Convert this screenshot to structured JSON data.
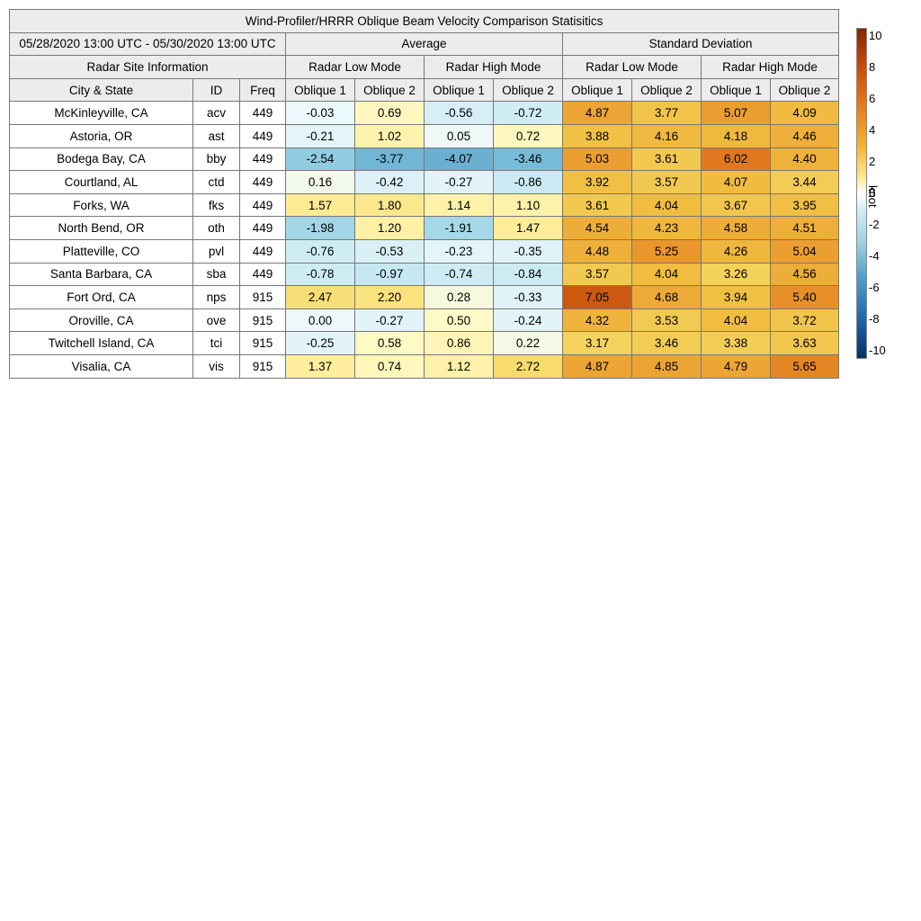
{
  "chart_data": {
    "type": "table",
    "title": "Wind-Profiler/HRRR Oblique Beam Velocity Comparison Statisitics",
    "period": "05/28/2020 13:00 UTC - 05/30/2020 13:00 UTC",
    "group_headers": [
      "Average",
      "Standard Deviation"
    ],
    "site_info_header": "Radar Site Information",
    "mode_headers": [
      "Radar Low Mode",
      "Radar High Mode",
      "Radar Low Mode",
      "Radar High Mode"
    ],
    "column_headers": [
      "City & State",
      "ID",
      "Freq",
      "Oblique 1",
      "Oblique 2",
      "Oblique 1",
      "Oblique 2",
      "Oblique 1",
      "Oblique 2",
      "Oblique 1",
      "Oblique 2"
    ],
    "rows": [
      {
        "city": "McKinleyville, CA",
        "id": "acv",
        "freq": "449",
        "avg": [
          "-0.03",
          "0.69",
          "-0.56",
          "-0.72"
        ],
        "std": [
          "4.87",
          "3.77",
          "5.07",
          "4.09"
        ]
      },
      {
        "city": "Astoria, OR",
        "id": "ast",
        "freq": "449",
        "avg": [
          "-0.21",
          "1.02",
          "0.05",
          "0.72"
        ],
        "std": [
          "3.88",
          "4.16",
          "4.18",
          "4.46"
        ]
      },
      {
        "city": "Bodega Bay, CA",
        "id": "bby",
        "freq": "449",
        "avg": [
          "-2.54",
          "-3.77",
          "-4.07",
          "-3.46"
        ],
        "std": [
          "5.03",
          "3.61",
          "6.02",
          "4.40"
        ]
      },
      {
        "city": "Courtland, AL",
        "id": "ctd",
        "freq": "449",
        "avg": [
          "0.16",
          "-0.42",
          "-0.27",
          "-0.86"
        ],
        "std": [
          "3.92",
          "3.57",
          "4.07",
          "3.44"
        ]
      },
      {
        "city": "Forks, WA",
        "id": "fks",
        "freq": "449",
        "avg": [
          "1.57",
          "1.80",
          "1.14",
          "1.10"
        ],
        "std": [
          "3.61",
          "4.04",
          "3.67",
          "3.95"
        ]
      },
      {
        "city": "North Bend, OR",
        "id": "oth",
        "freq": "449",
        "avg": [
          "-1.98",
          "1.20",
          "-1.91",
          "1.47"
        ],
        "std": [
          "4.54",
          "4.23",
          "4.58",
          "4.51"
        ]
      },
      {
        "city": "Platteville, CO",
        "id": "pvl",
        "freq": "449",
        "avg": [
          "-0.76",
          "-0.53",
          "-0.23",
          "-0.35"
        ],
        "std": [
          "4.48",
          "5.25",
          "4.26",
          "5.04"
        ]
      },
      {
        "city": "Santa Barbara, CA",
        "id": "sba",
        "freq": "449",
        "avg": [
          "-0.78",
          "-0.97",
          "-0.74",
          "-0.84"
        ],
        "std": [
          "3.57",
          "4.04",
          "3.26",
          "4.56"
        ]
      },
      {
        "city": "Fort Ord, CA",
        "id": "nps",
        "freq": "915",
        "avg": [
          "2.47",
          "2.20",
          "0.28",
          "-0.33"
        ],
        "std": [
          "7.05",
          "4.68",
          "3.94",
          "5.40"
        ]
      },
      {
        "city": "Oroville, CA",
        "id": "ove",
        "freq": "915",
        "avg": [
          "0.00",
          "-0.27",
          "0.50",
          "-0.24"
        ],
        "std": [
          "4.32",
          "3.53",
          "4.04",
          "3.72"
        ]
      },
      {
        "city": "Twitchell Island, CA",
        "id": "tci",
        "freq": "915",
        "avg": [
          "-0.25",
          "0.58",
          "0.86",
          "0.22"
        ],
        "std": [
          "3.17",
          "3.46",
          "3.38",
          "3.63"
        ]
      },
      {
        "city": "Visalia, CA",
        "id": "vis",
        "freq": "915",
        "avg": [
          "1.37",
          "0.74",
          "1.12",
          "2.72"
        ],
        "std": [
          "4.87",
          "4.85",
          "4.79",
          "5.65"
        ]
      }
    ],
    "colorbar": {
      "unit": "knot",
      "ticks": [
        "10",
        "8",
        "6",
        "4",
        "2",
        "0",
        "-2",
        "-4",
        "-6",
        "-8",
        "-10"
      ],
      "range": [
        -10,
        10
      ]
    }
  }
}
